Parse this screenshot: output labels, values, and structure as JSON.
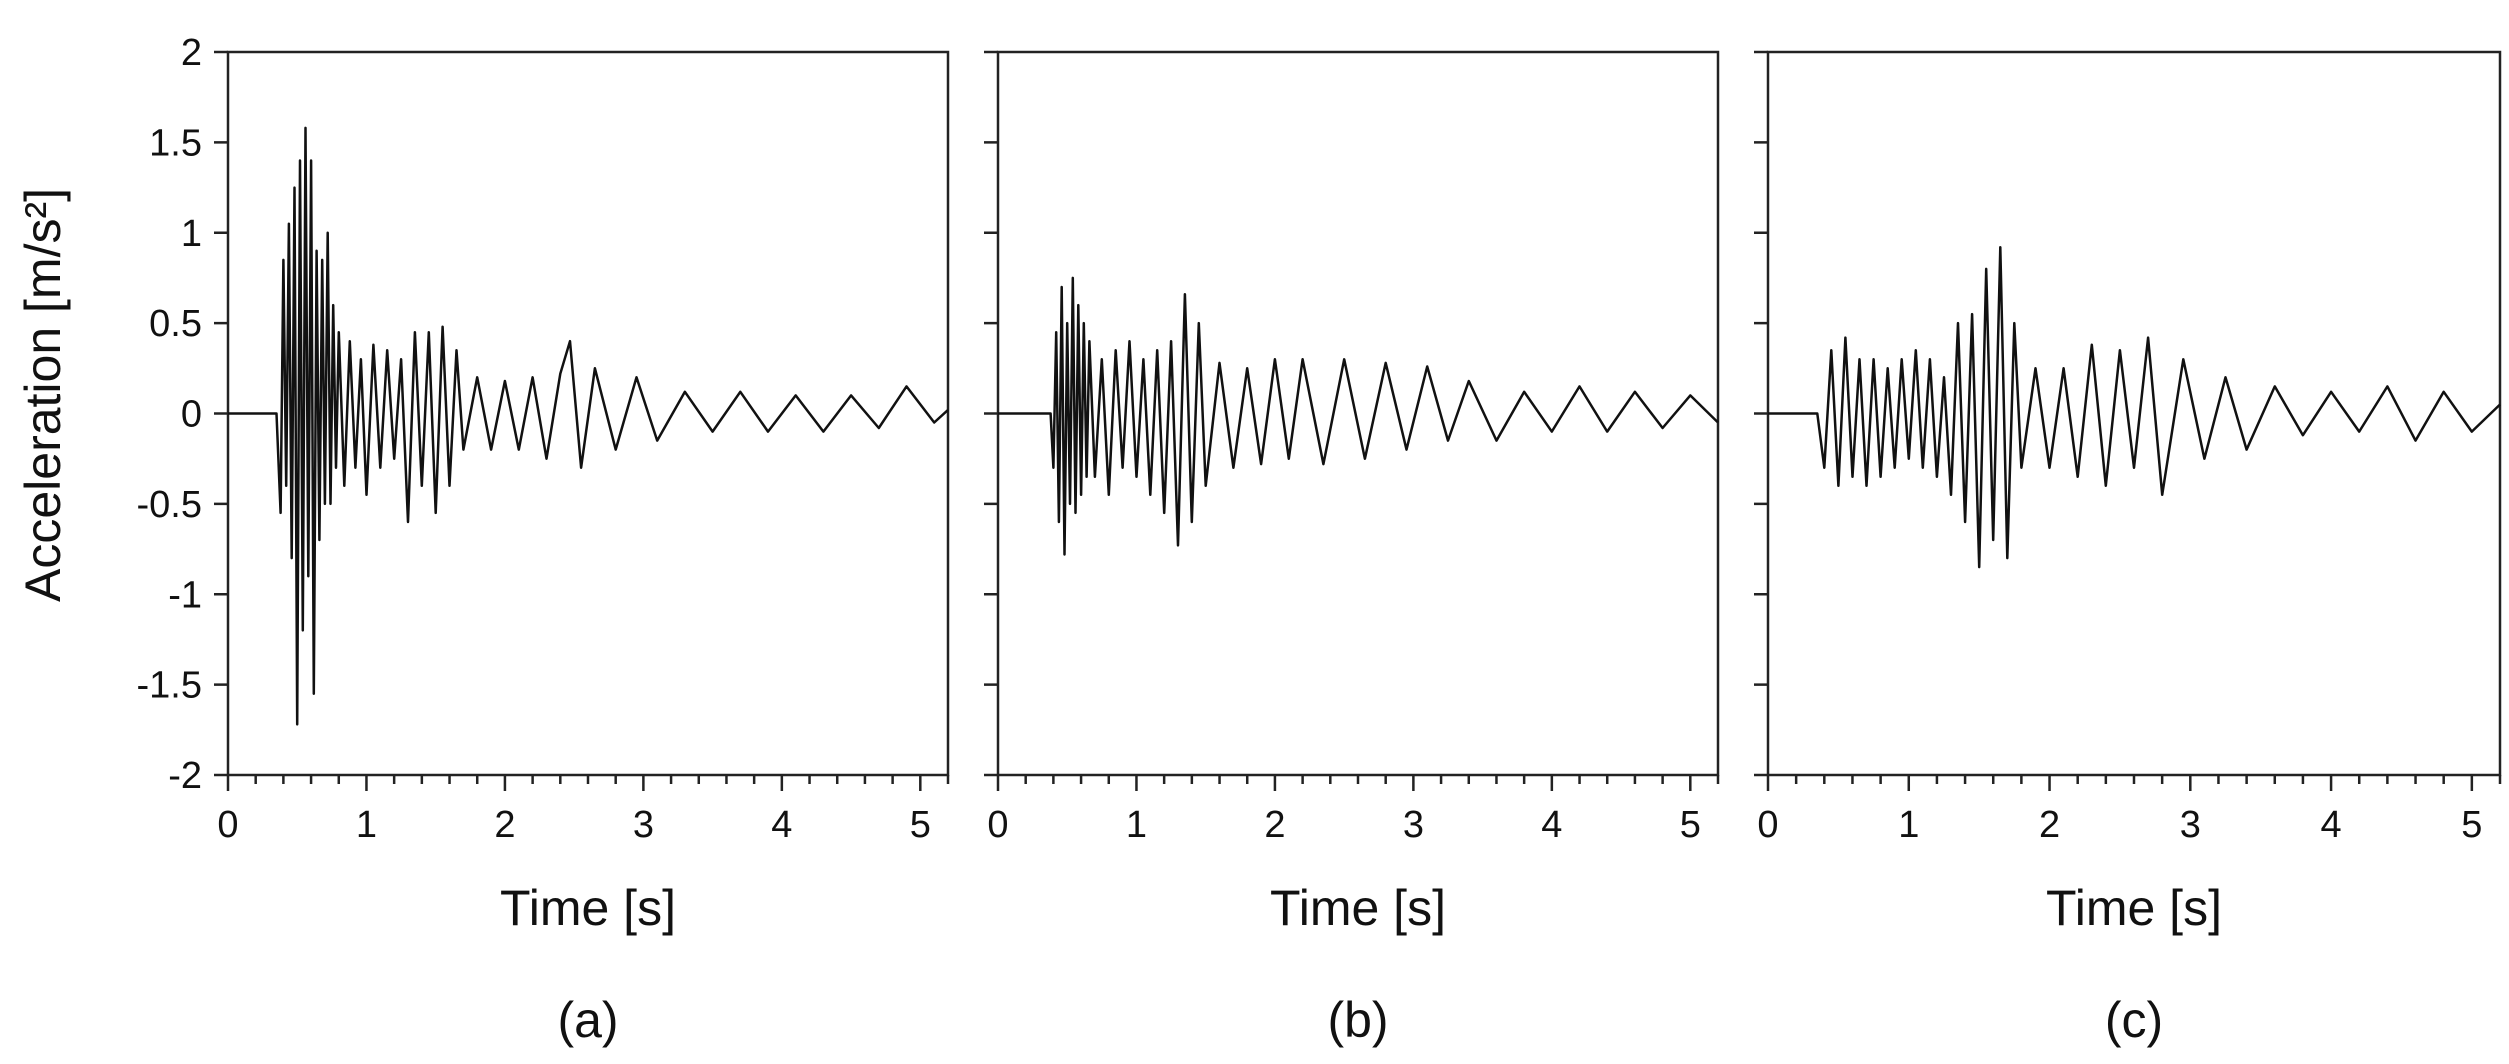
{
  "figure": {
    "ylabel": "Acceleration [m/s²]",
    "xlabel": "Time [s]"
  },
  "chart_data": [
    {
      "type": "line",
      "panel_label": "(a)",
      "xlabel": "Time [s]",
      "ylabel": "Acceleration [m/s²]",
      "xlim": [
        0,
        5.2
      ],
      "ylim": [
        -2,
        2
      ],
      "xticks": [
        0,
        1,
        2,
        3,
        4,
        5
      ],
      "yticks": [
        2,
        1.5,
        1,
        0.5,
        0,
        -0.5,
        -1,
        -1.5,
        -2
      ],
      "grid": false,
      "series": [
        {
          "x": [
            0,
            0.35,
            0.38,
            0.4,
            0.42,
            0.44,
            0.46,
            0.48,
            0.5,
            0.52,
            0.54,
            0.56,
            0.58,
            0.6,
            0.62,
            0.64,
            0.66,
            0.68,
            0.7,
            0.72,
            0.74,
            0.76,
            0.78,
            0.8,
            0.84,
            0.88,
            0.92,
            0.96,
            1.0,
            1.05,
            1.1,
            1.15,
            1.2,
            1.25,
            1.3,
            1.35,
            1.4,
            1.45,
            1.5,
            1.55,
            1.6,
            1.65,
            1.7,
            1.8,
            1.9,
            2.0,
            2.1,
            2.2,
            2.3,
            2.4,
            2.47,
            2.55,
            2.65,
            2.8,
            2.95,
            3.1,
            3.3,
            3.5,
            3.7,
            3.9,
            4.1,
            4.3,
            4.5,
            4.7,
            4.9,
            5.1,
            5.2
          ],
          "y": [
            0,
            0,
            -0.55,
            0.85,
            -0.4,
            1.05,
            -0.8,
            1.25,
            -1.72,
            1.4,
            -1.2,
            1.58,
            -0.9,
            1.4,
            -1.55,
            0.9,
            -0.7,
            0.85,
            -0.5,
            1.0,
            -0.5,
            0.6,
            -0.3,
            0.45,
            -0.4,
            0.4,
            -0.3,
            0.3,
            -0.45,
            0.38,
            -0.3,
            0.35,
            -0.25,
            0.3,
            -0.6,
            0.45,
            -0.4,
            0.45,
            -0.55,
            0.48,
            -0.4,
            0.35,
            -0.2,
            0.2,
            -0.2,
            0.18,
            -0.2,
            0.2,
            -0.25,
            0.22,
            0.4,
            -0.3,
            0.25,
            -0.2,
            0.2,
            -0.15,
            0.12,
            -0.1,
            0.12,
            -0.1,
            0.1,
            -0.1,
            0.1,
            -0.08,
            0.15,
            -0.05,
            0.02
          ]
        }
      ]
    },
    {
      "type": "line",
      "panel_label": "(b)",
      "xlabel": "Time [s]",
      "xlim": [
        0,
        5.2
      ],
      "ylim": [
        -2,
        2
      ],
      "xticks": [
        0,
        1,
        2,
        3,
        4,
        5
      ],
      "grid": false,
      "series": [
        {
          "x": [
            0,
            0.38,
            0.4,
            0.42,
            0.44,
            0.46,
            0.48,
            0.5,
            0.52,
            0.54,
            0.56,
            0.58,
            0.6,
            0.62,
            0.64,
            0.66,
            0.7,
            0.75,
            0.8,
            0.85,
            0.9,
            0.95,
            1.0,
            1.05,
            1.1,
            1.15,
            1.2,
            1.25,
            1.3,
            1.35,
            1.4,
            1.45,
            1.5,
            1.6,
            1.7,
            1.8,
            1.9,
            2.0,
            2.1,
            2.2,
            2.35,
            2.5,
            2.65,
            2.8,
            2.95,
            3.1,
            3.25,
            3.4,
            3.6,
            3.8,
            4.0,
            4.2,
            4.4,
            4.6,
            4.8,
            5.0,
            5.2
          ],
          "y": [
            0,
            0,
            -0.3,
            0.45,
            -0.6,
            0.7,
            -0.78,
            0.5,
            -0.5,
            0.75,
            -0.55,
            0.6,
            -0.45,
            0.5,
            -0.35,
            0.4,
            -0.35,
            0.3,
            -0.45,
            0.35,
            -0.3,
            0.4,
            -0.35,
            0.3,
            -0.45,
            0.35,
            -0.55,
            0.4,
            -0.73,
            0.66,
            -0.6,
            0.5,
            -0.4,
            0.28,
            -0.3,
            0.25,
            -0.28,
            0.3,
            -0.25,
            0.3,
            -0.28,
            0.3,
            -0.25,
            0.28,
            -0.2,
            0.26,
            -0.15,
            0.18,
            -0.15,
            0.12,
            -0.1,
            0.15,
            -0.1,
            0.12,
            -0.08,
            0.1,
            -0.05
          ]
        }
      ]
    },
    {
      "type": "line",
      "panel_label": "(c)",
      "xlabel": "Time [s]",
      "xlim": [
        0,
        5.2
      ],
      "ylim": [
        -2,
        2
      ],
      "xticks": [
        0,
        1,
        2,
        3,
        4,
        5
      ],
      "grid": false,
      "series": [
        {
          "x": [
            0,
            0.35,
            0.4,
            0.45,
            0.5,
            0.55,
            0.6,
            0.65,
            0.7,
            0.75,
            0.8,
            0.85,
            0.9,
            0.95,
            1.0,
            1.05,
            1.1,
            1.15,
            1.2,
            1.25,
            1.3,
            1.35,
            1.4,
            1.45,
            1.5,
            1.55,
            1.6,
            1.65,
            1.7,
            1.75,
            1.8,
            1.9,
            2.0,
            2.1,
            2.2,
            2.3,
            2.4,
            2.5,
            2.6,
            2.7,
            2.8,
            2.95,
            3.1,
            3.25,
            3.4,
            3.6,
            3.8,
            4.0,
            4.2,
            4.4,
            4.6,
            4.8,
            5.0,
            5.2
          ],
          "y": [
            0,
            0,
            -0.3,
            0.35,
            -0.4,
            0.42,
            -0.35,
            0.3,
            -0.4,
            0.3,
            -0.35,
            0.25,
            -0.3,
            0.3,
            -0.25,
            0.35,
            -0.3,
            0.3,
            -0.35,
            0.2,
            -0.45,
            0.5,
            -0.6,
            0.55,
            -0.85,
            0.8,
            -0.7,
            0.92,
            -0.8,
            0.5,
            -0.3,
            0.25,
            -0.3,
            0.25,
            -0.35,
            0.38,
            -0.4,
            0.35,
            -0.3,
            0.42,
            -0.45,
            0.3,
            -0.25,
            0.2,
            -0.2,
            0.15,
            -0.12,
            0.12,
            -0.1,
            0.15,
            -0.15,
            0.12,
            -0.1,
            0.05
          ]
        }
      ]
    }
  ]
}
